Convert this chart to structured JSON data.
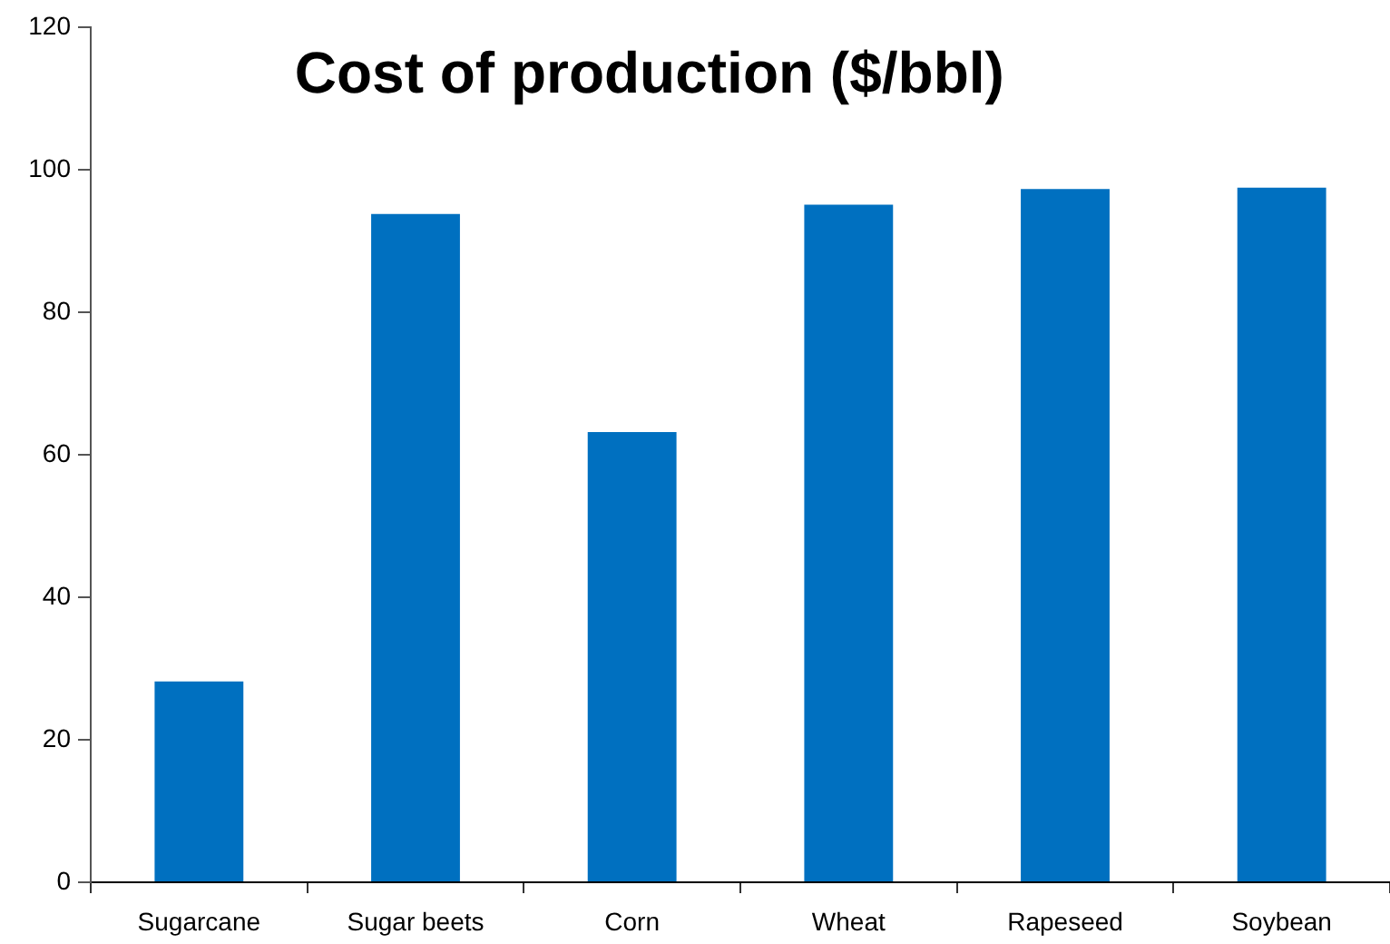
{
  "chart_data": {
    "type": "bar",
    "title": "Cost of production ($/bbl)",
    "categories": [
      "Sugarcane",
      "Sugar beets",
      "Corn",
      "Wheat",
      "Rapeseed",
      "Soybean"
    ],
    "values": [
      28.2,
      93.8,
      63.2,
      95.1,
      97.3,
      97.5
    ],
    "color": "#0070c0",
    "ylim": [
      0,
      120
    ],
    "yticks": [
      0,
      20,
      40,
      60,
      80,
      100,
      120
    ],
    "grid": false,
    "legend": false
  }
}
